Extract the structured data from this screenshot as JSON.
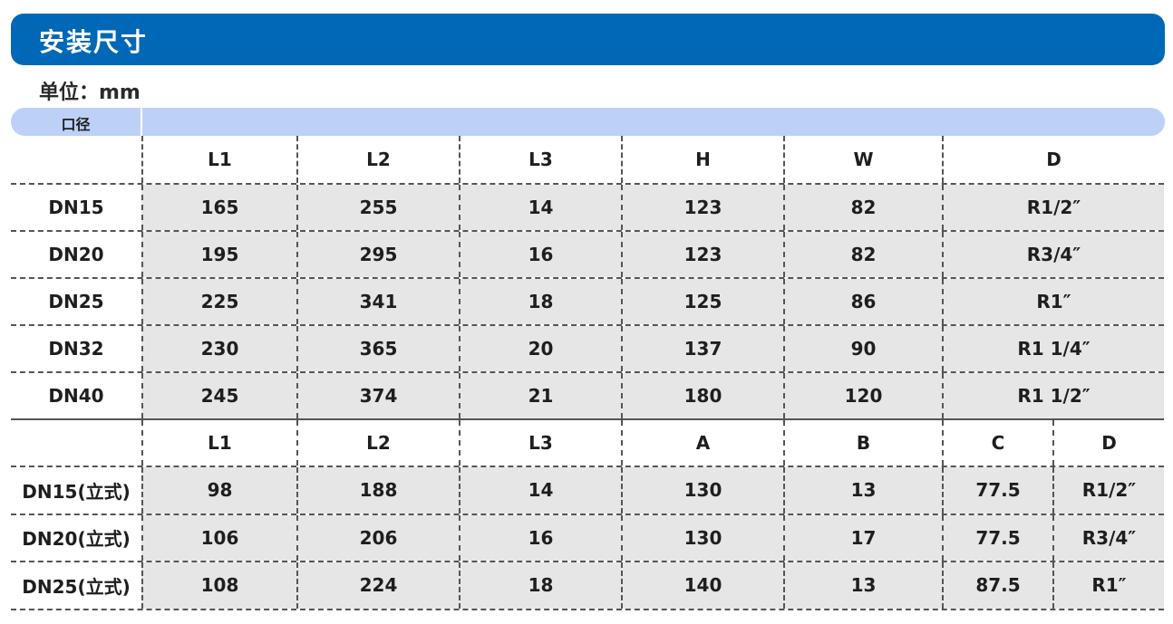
{
  "title": "安装尺寸",
  "unit": "单位：mm",
  "header_bar": {
    "label": "口径"
  },
  "colors": {
    "title_bar": "#0068b7",
    "header_bar": "#bdd0f7",
    "row_fill": "#e6e6e6"
  },
  "table1": {
    "headers": [
      "",
      "L1",
      "L2",
      "L3",
      "H",
      "W",
      "D"
    ],
    "rows": [
      [
        "DN15",
        "165",
        "255",
        "14",
        "123",
        "82",
        "R1/2″"
      ],
      [
        "DN20",
        "195",
        "295",
        "16",
        "123",
        "82",
        "R3/4″"
      ],
      [
        "DN25",
        "225",
        "341",
        "18",
        "125",
        "86",
        "R1″"
      ],
      [
        "DN32",
        "230",
        "365",
        "20",
        "137",
        "90",
        "R1 1/4″"
      ],
      [
        "DN40",
        "245",
        "374",
        "21",
        "180",
        "120",
        "R1 1/2″"
      ]
    ]
  },
  "table2": {
    "headers": [
      "",
      "L1",
      "L2",
      "L3",
      "A",
      "B",
      "C",
      "D"
    ],
    "rows": [
      [
        "DN15(立式)",
        "98",
        "188",
        "14",
        "130",
        "13",
        "77.5",
        "R1/2″"
      ],
      [
        "DN20(立式)",
        "106",
        "206",
        "16",
        "130",
        "17",
        "77.5",
        "R3/4″"
      ],
      [
        "DN25(立式)",
        "108",
        "224",
        "18",
        "140",
        "13",
        "87.5",
        "R1″"
      ]
    ]
  }
}
